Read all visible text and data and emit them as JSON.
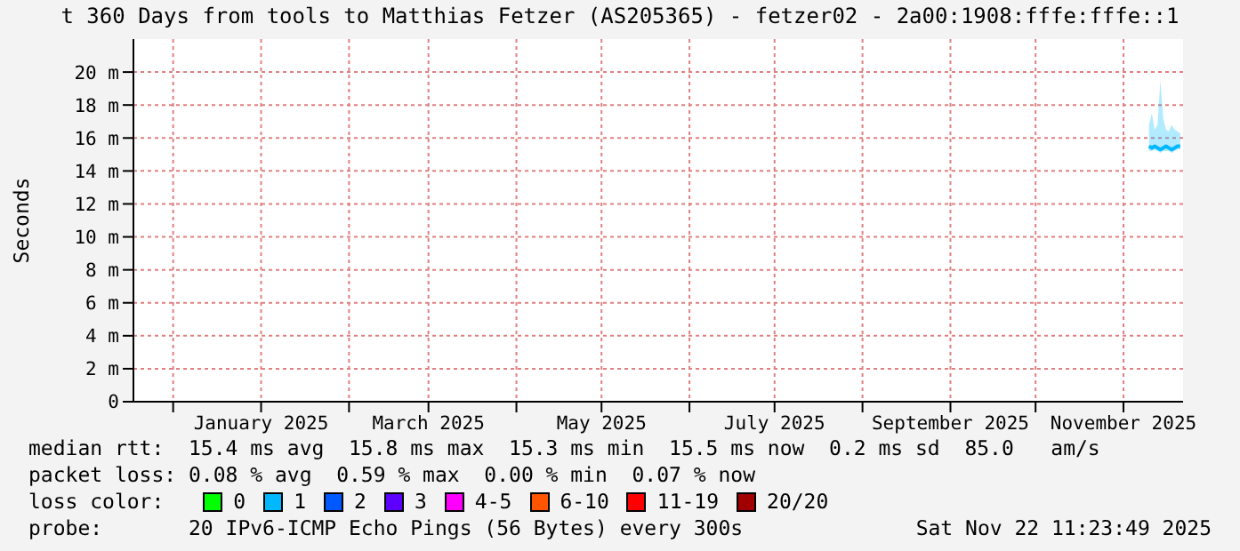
{
  "chart_data": {
    "type": "line",
    "title": "t 360 Days from tools to Matthias Fetzer (AS205365) - fetzer02 - 2a00:1908:fffe:fffe::1",
    "ylabel": "Seconds",
    "x": [
      "2025-11-10",
      "2025-11-11",
      "2025-11-12",
      "2025-11-13",
      "2025-11-14",
      "2025-11-15",
      "2025-11-16",
      "2025-11-17",
      "2025-11-18",
      "2025-11-19",
      "2025-11-20",
      "2025-11-21"
    ],
    "series": [
      {
        "name": "0",
        "color": "#00ff00",
        "values": [
          null,
          null,
          null,
          null,
          null,
          null,
          null,
          null,
          null,
          null,
          null,
          null
        ]
      },
      {
        "name": "1",
        "color": "#00b8ff",
        "values": [
          15.5,
          15.4,
          15.5,
          15.4,
          15.3,
          15.4,
          15.5,
          15.4,
          15.3,
          15.4,
          15.5,
          15.5
        ],
        "lower": [
          15.2,
          15.2,
          15.3,
          15.2,
          15.1,
          15.2,
          15.2,
          15.2,
          15.1,
          15.2,
          15.3,
          15.3
        ],
        "upper": [
          16.8,
          17.5,
          16.5,
          16.8,
          19.5,
          17.2,
          16.5,
          16.4,
          16.8,
          16.5,
          16.4,
          16.3
        ]
      },
      {
        "name": "2",
        "color": "#0059ff",
        "values": [
          null,
          null,
          null,
          null,
          null,
          null,
          null,
          null,
          null,
          null,
          null,
          null
        ]
      },
      {
        "name": "3",
        "color": "#5e00ff",
        "values": [
          null,
          null,
          null,
          null,
          null,
          null,
          null,
          null,
          null,
          null,
          null,
          null
        ]
      },
      {
        "name": "4-5",
        "color": "#ff00ff",
        "values": [
          null,
          null,
          null,
          null,
          null,
          null,
          null,
          null,
          null,
          null,
          null,
          null
        ]
      },
      {
        "name": "6-10",
        "color": "#ff5500",
        "values": [
          null,
          null,
          null,
          null,
          null,
          null,
          null,
          null,
          null,
          null,
          null,
          null
        ]
      },
      {
        "name": "11-19",
        "color": "#ff0000",
        "values": [
          null,
          null,
          null,
          null,
          null,
          null,
          null,
          null,
          null,
          null,
          null,
          null
        ]
      },
      {
        "name": "20/20",
        "color": "#a10000",
        "values": [
          null,
          null,
          null,
          null,
          null,
          null,
          null,
          null,
          null,
          null,
          null,
          null
        ]
      }
    ],
    "xlim": [
      "2024-11-17",
      "2025-11-22"
    ],
    "xticks": [
      {
        "value": "2024-12-01",
        "label": null
      },
      {
        "value": "2025-01-01",
        "label": "January 2025"
      },
      {
        "value": "2025-02-01",
        "label": null
      },
      {
        "value": "2025-03-01",
        "label": "March 2025"
      },
      {
        "value": "2025-04-01",
        "label": null
      },
      {
        "value": "2025-05-01",
        "label": "May 2025"
      },
      {
        "value": "2025-06-01",
        "label": null
      },
      {
        "value": "2025-07-01",
        "label": "July 2025"
      },
      {
        "value": "2025-08-01",
        "label": null
      },
      {
        "value": "2025-09-01",
        "label": "September 2025"
      },
      {
        "value": "2025-10-01",
        "label": null
      },
      {
        "value": "2025-11-01",
        "label": "November 2025"
      }
    ],
    "ylim": [
      0,
      22
    ],
    "yticks": [
      0,
      {
        "value": 2,
        "label": "2 m"
      },
      {
        "value": 4,
        "label": "4 m"
      },
      {
        "value": 6,
        "label": "6 m"
      },
      {
        "value": 8,
        "label": "8 m"
      },
      {
        "value": 10,
        "label": "10 m"
      },
      {
        "value": 12,
        "label": "12 m"
      },
      {
        "value": 14,
        "label": "14 m"
      },
      {
        "value": 16,
        "label": "16 m"
      },
      {
        "value": 18,
        "label": "18 m"
      },
      {
        "value": 20,
        "label": "20 m"
      }
    ],
    "grid": true,
    "legend": "bottom",
    "legend_title": "loss color:",
    "annotations": [
      "median rtt:  15.4 ms avg  15.8 ms max  15.3 ms min  15.5 ms now  0.2 ms sd  85.0   am/s",
      "packet loss: 0.08 % avg  0.59 % max  0.00 % min  0.07 % now",
      "probe:       20 IPv6-ICMP Echo Pings (56 Bytes) every 300s",
      "Sat Nov 22 11:23:49 2025"
    ]
  }
}
